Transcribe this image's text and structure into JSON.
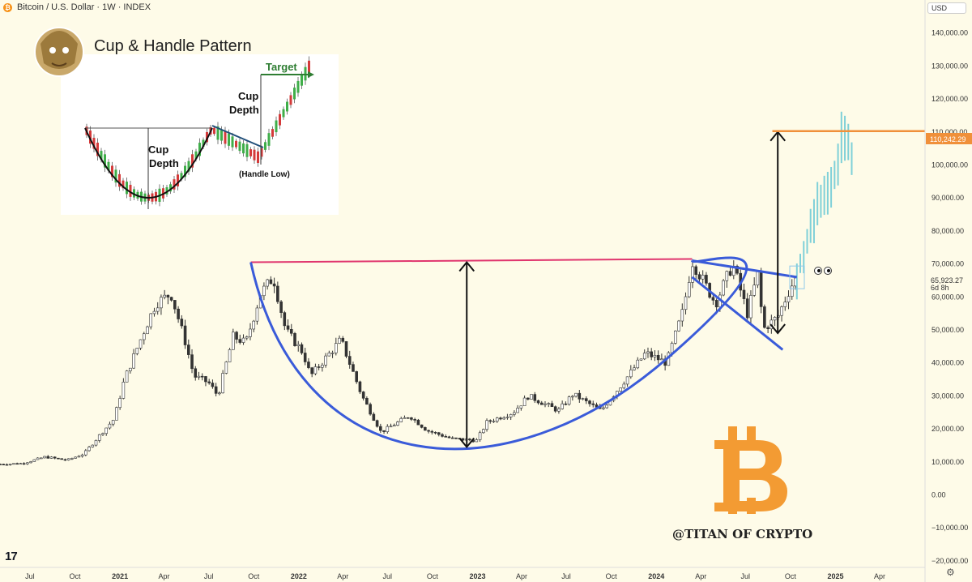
{
  "header": {
    "symbol_icon": "bitcoin-icon",
    "title": "Bitcoin / U.S. Dollar · 1W · INDEX"
  },
  "currency_selector": {
    "value": "USD"
  },
  "inset": {
    "title": "Cup & Handle Pattern",
    "label_cup_depth_left": "Cup",
    "label_cup_depth_left_2": "Depth",
    "label_cup_depth_right": "Cup",
    "label_cup_depth_right_2": "Depth",
    "label_target": "Target",
    "label_handle_low": "(Handle Low)"
  },
  "watermark": {
    "text": "@TITAN OF CRYPTO",
    "logo": "bitcoin-logo"
  },
  "price_badges": {
    "target_level": "110,242.29",
    "current_price": "65,923.27",
    "countdown": "6d 8h"
  },
  "colors": {
    "bull_candle": "#ffffff",
    "bear_candle": "#333333",
    "cup_line": "#3a5bd9",
    "rim_line": "#e0356e",
    "target_line": "#f0903a",
    "projection": "#7fd0d8",
    "bitcoin": "#f7931a"
  },
  "chart_data": {
    "type": "candlestick",
    "title": "Bitcoin / U.S. Dollar · 1W · INDEX",
    "y_axis": {
      "ticks": [
        140000,
        130000,
        120000,
        110000,
        100000,
        90000,
        80000,
        70000,
        60000,
        50000,
        40000,
        30000,
        20000,
        10000,
        0,
        -10000,
        -20000
      ],
      "tick_labels": [
        "140,000.00",
        "130,000.00",
        "120,000.00",
        "110,000.00",
        "100,000.00",
        "90,000.00",
        "80,000.00",
        "70,000.00",
        "60,000.00",
        "50,000.00",
        "40,000.00",
        "30,000.00",
        "20,000.00",
        "10,000.00",
        "0.00",
        "−10,000.00",
        "−20,000.00"
      ],
      "range": [
        -22000,
        150000
      ]
    },
    "x_axis": {
      "ticks": [
        "Jul",
        "Oct",
        "2021",
        "Apr",
        "Jul",
        "Oct",
        "2022",
        "Apr",
        "Jul",
        "Oct",
        "2023",
        "Apr",
        "Jul",
        "Oct",
        "2024",
        "Apr",
        "Jul",
        "Oct",
        "2025",
        "Apr"
      ],
      "dates": [
        "2020-07-01",
        "2020-10-01",
        "2021-01-01",
        "2021-04-01",
        "2021-07-01",
        "2021-10-01",
        "2022-01-01",
        "2022-04-01",
        "2022-07-01",
        "2022-10-01",
        "2023-01-01",
        "2023-04-01",
        "2023-07-01",
        "2023-10-01",
        "2024-01-01",
        "2024-04-01",
        "2024-07-01",
        "2024-10-01",
        "2025-01-01",
        "2025-04-01"
      ],
      "bold": [
        "2021",
        "2022",
        "2023",
        "2024",
        "2025"
      ],
      "range": [
        "2020-05-01",
        "2025-07-01"
      ]
    },
    "price_path": [
      [
        "2020-05-01",
        9300
      ],
      [
        "2020-06-15",
        9500
      ],
      [
        "2020-08-01",
        11500
      ],
      [
        "2020-09-15",
        10500
      ],
      [
        "2020-10-20",
        12500
      ],
      [
        "2020-11-20",
        18000
      ],
      [
        "2020-12-20",
        23000
      ],
      [
        "2021-01-10",
        35000
      ],
      [
        "2021-02-20",
        50000
      ],
      [
        "2021-03-15",
        58000
      ],
      [
        "2021-04-15",
        61000
      ],
      [
        "2021-05-15",
        46000
      ],
      [
        "2021-06-01",
        36000
      ],
      [
        "2021-07-01",
        34000
      ],
      [
        "2021-07-20",
        30000
      ],
      [
        "2021-08-20",
        48000
      ],
      [
        "2021-09-15",
        46000
      ],
      [
        "2021-10-15",
        61000
      ],
      [
        "2021-11-10",
        66000
      ],
      [
        "2021-12-05",
        50000
      ],
      [
        "2022-01-10",
        43000
      ],
      [
        "2022-01-25",
        36000
      ],
      [
        "2022-03-28",
        47000
      ],
      [
        "2022-05-10",
        30000
      ],
      [
        "2022-06-18",
        19000
      ],
      [
        "2022-08-15",
        24000
      ],
      [
        "2022-09-20",
        19500
      ],
      [
        "2022-11-10",
        17000
      ],
      [
        "2022-12-30",
        16500
      ],
      [
        "2023-01-20",
        22000
      ],
      [
        "2023-03-15",
        25000
      ],
      [
        "2023-04-15",
        30000
      ],
      [
        "2023-06-15",
        25500
      ],
      [
        "2023-07-15",
        30500
      ],
      [
        "2023-09-10",
        25500
      ],
      [
        "2023-10-25",
        34000
      ],
      [
        "2023-12-10",
        43000
      ],
      [
        "2024-01-22",
        40000
      ],
      [
        "2024-02-25",
        56000
      ],
      [
        "2024-03-14",
        71000
      ],
      [
        "2024-05-01",
        58000
      ],
      [
        "2024-06-05",
        70000
      ],
      [
        "2024-07-05",
        55000
      ],
      [
        "2024-07-28",
        68000
      ],
      [
        "2024-08-05",
        50000
      ],
      [
        "2024-09-05",
        54000
      ],
      [
        "2024-10-01",
        63000
      ],
      [
        "2024-10-14",
        65923
      ]
    ],
    "annotations": {
      "rim_line": {
        "from": [
          "2021-09-25",
          70500
        ],
        "to": [
          "2024-03-14",
          71500
        ]
      },
      "cup_curve": {
        "start": [
          "2021-09-25",
          70500
        ],
        "bottom": [
          "2022-12-20",
          13500
        ],
        "end": [
          "2024-03-14",
          71000
        ]
      },
      "handle_top_line": {
        "from": [
          "2024-03-14",
          71000
        ],
        "to": [
          "2024-10-14",
          66000
        ]
      },
      "handle_bottom_line": {
        "from": [
          "2024-03-14",
          66000
        ],
        "to": [
          "2024-09-15",
          44000
        ]
      },
      "cup_depth_arrow": {
        "date": "2022-12-10",
        "from": 14500,
        "to": 70500
      },
      "target_arrow": {
        "date": "2024-09-05",
        "from": 49000,
        "to": 110000
      },
      "target_line": {
        "from": "2024-08-25",
        "price": 110242.29
      },
      "projection_path": [
        [
          "2024-10-14",
          66000
        ],
        [
          "2024-10-30",
          75000
        ],
        [
          "2024-11-25",
          88000
        ],
        [
          "2024-12-20",
          95000
        ],
        [
          "2025-01-05",
          100000
        ],
        [
          "2025-01-15",
          112000
        ],
        [
          "2025-01-22",
          106000
        ],
        [
          "2025-02-05",
          103000
        ]
      ]
    }
  }
}
